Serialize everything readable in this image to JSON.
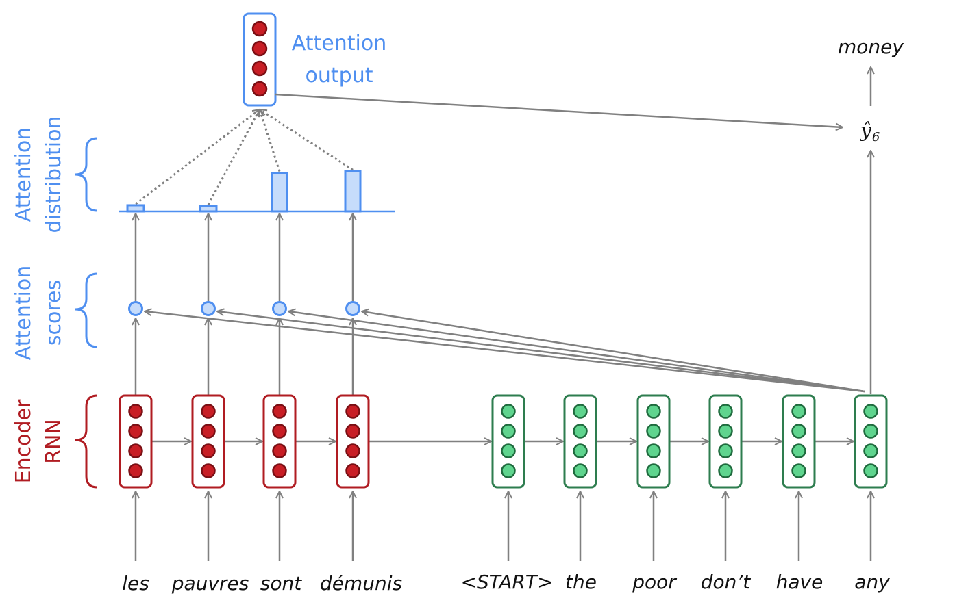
{
  "encoder_words": [
    "les",
    "pauvres",
    "sont",
    "démunis"
  ],
  "decoder_words": [
    "<START>",
    "the",
    "poor",
    "don’t",
    "have",
    "any"
  ],
  "output_word": "money",
  "yhat": {
    "symbol": "ŷ",
    "subscript": "6"
  },
  "labels": {
    "attention_output": [
      "Attention",
      "output"
    ],
    "attention_distribution": [
      "Attention",
      "distribution"
    ],
    "attention_scores": [
      "Attention",
      "scores"
    ],
    "encoder_rnn": [
      "Encoder",
      "RNN"
    ]
  },
  "attention_distribution": [
    0.08,
    0.07,
    0.5,
    0.52
  ],
  "colors": {
    "encoder": "#b01c22",
    "encoder_fill": "#c81e25",
    "decoder": "#2e7d4f",
    "decoder_fill": "#5fd48e",
    "attention": "#4f8ff0",
    "attention_fill": "#c6dcfb",
    "arrow": "#808080"
  }
}
